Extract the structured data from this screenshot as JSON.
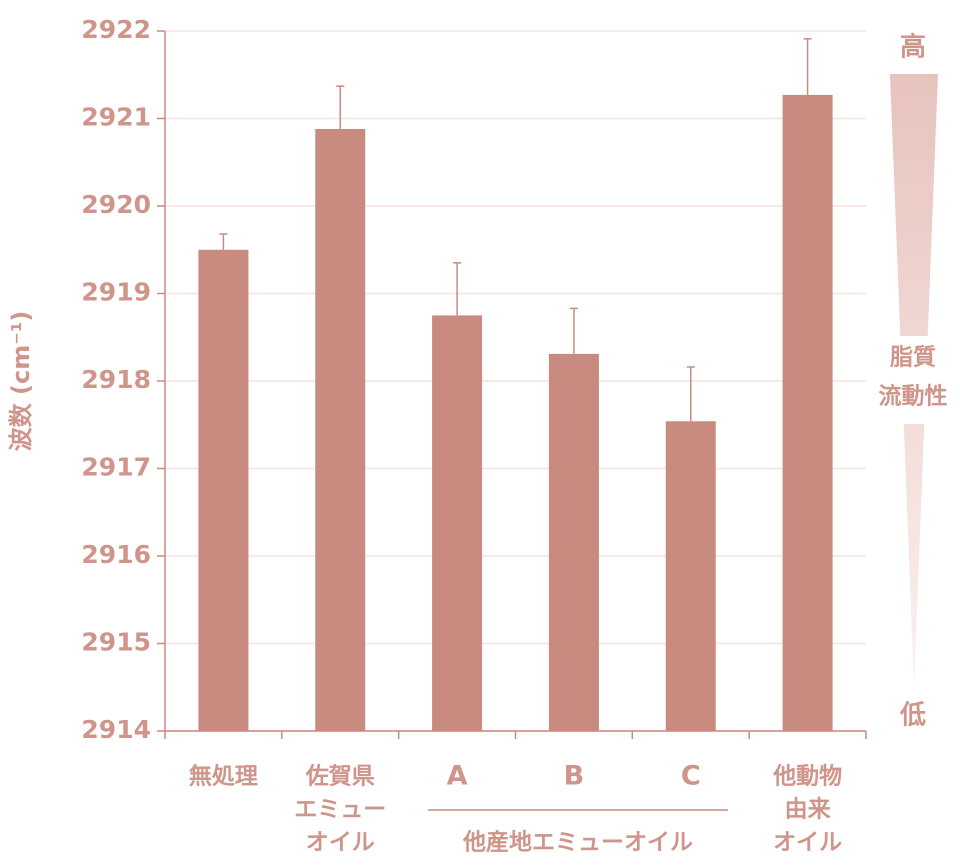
{
  "chart_data": {
    "type": "bar",
    "y_label": "波数 (cm⁻¹)",
    "categories": [
      [
        "無処理"
      ],
      [
        "佐賀県",
        "エミュー",
        "オイル"
      ],
      [
        "A"
      ],
      [
        "B"
      ],
      [
        "C"
      ],
      [
        "他動物",
        "由来",
        "オイル"
      ]
    ],
    "group_label": "他産地エミューオイル",
    "values": [
      2919.5,
      2920.88,
      2918.75,
      2918.31,
      2917.54,
      2921.27
    ],
    "errors": [
      0.18,
      0.49,
      0.6,
      0.52,
      0.62,
      0.64
    ],
    "color": "#c98a80",
    "ylim": [
      2914,
      2922
    ],
    "yticks": [
      2914,
      2915,
      2916,
      2917,
      2918,
      2919,
      2920,
      2921,
      2922
    ],
    "grid": true,
    "scale_annotation": {
      "high": "高",
      "label": [
        "脂質",
        "流動性"
      ],
      "low": "低"
    }
  }
}
